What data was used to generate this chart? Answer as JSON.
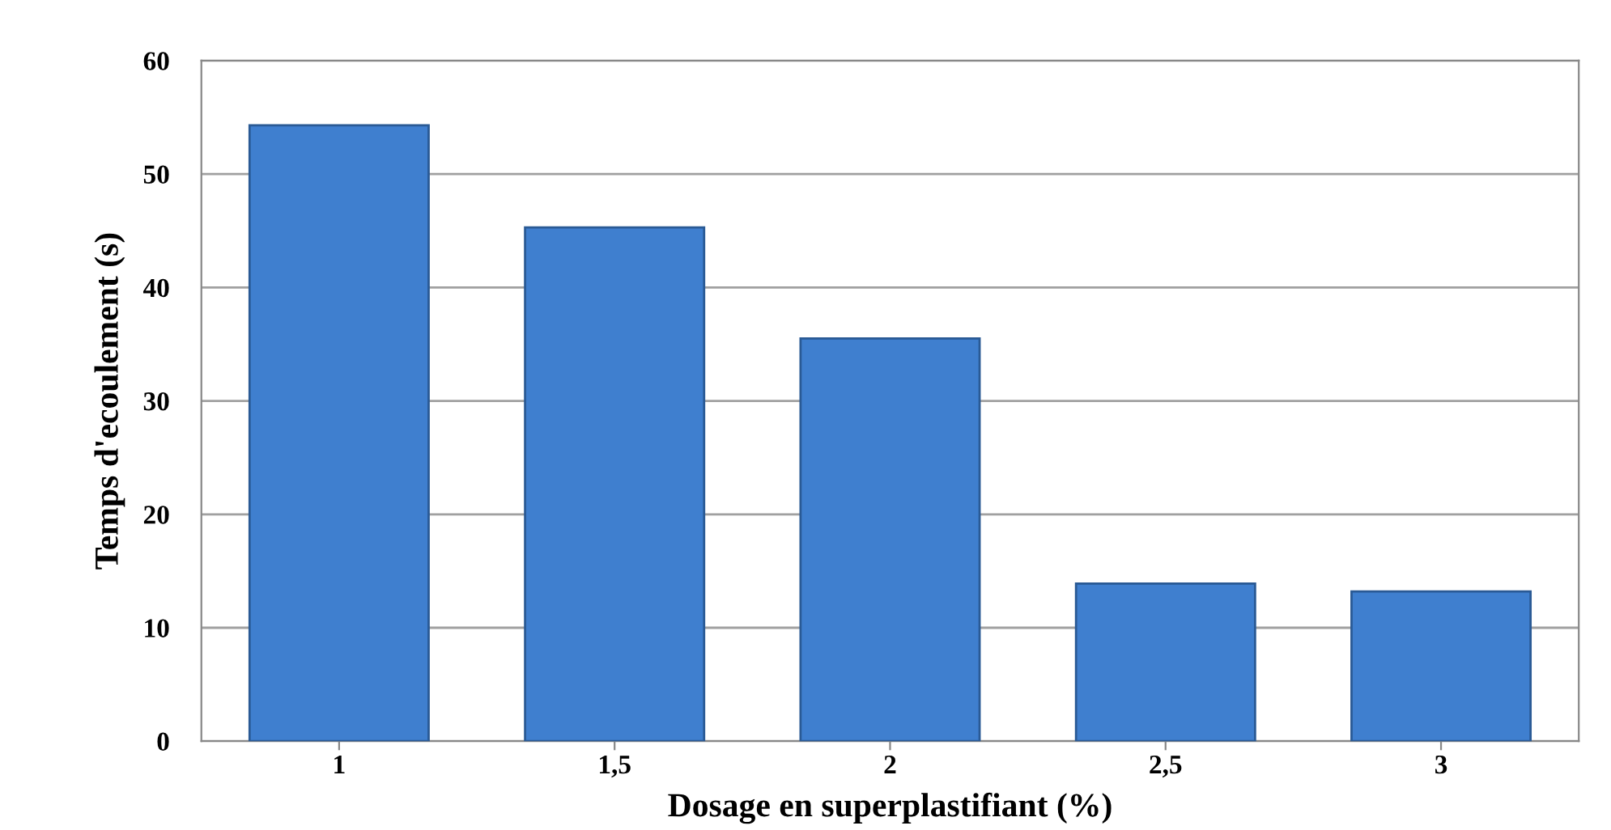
{
  "chart_data": {
    "type": "bar",
    "xlabel": "Dosage en superplastifiant (%)",
    "ylabel": "Temps d'ecoulement (s)",
    "categories": [
      "1",
      "1,5",
      "2",
      "2,5",
      "3"
    ],
    "values": [
      54.3,
      45.3,
      35.5,
      13.9,
      13.2
    ],
    "color": "#3f7fcf",
    "ylim": [
      0,
      60
    ],
    "yticks": [
      0,
      10,
      20,
      30,
      40,
      50,
      60
    ],
    "grid": "y"
  }
}
